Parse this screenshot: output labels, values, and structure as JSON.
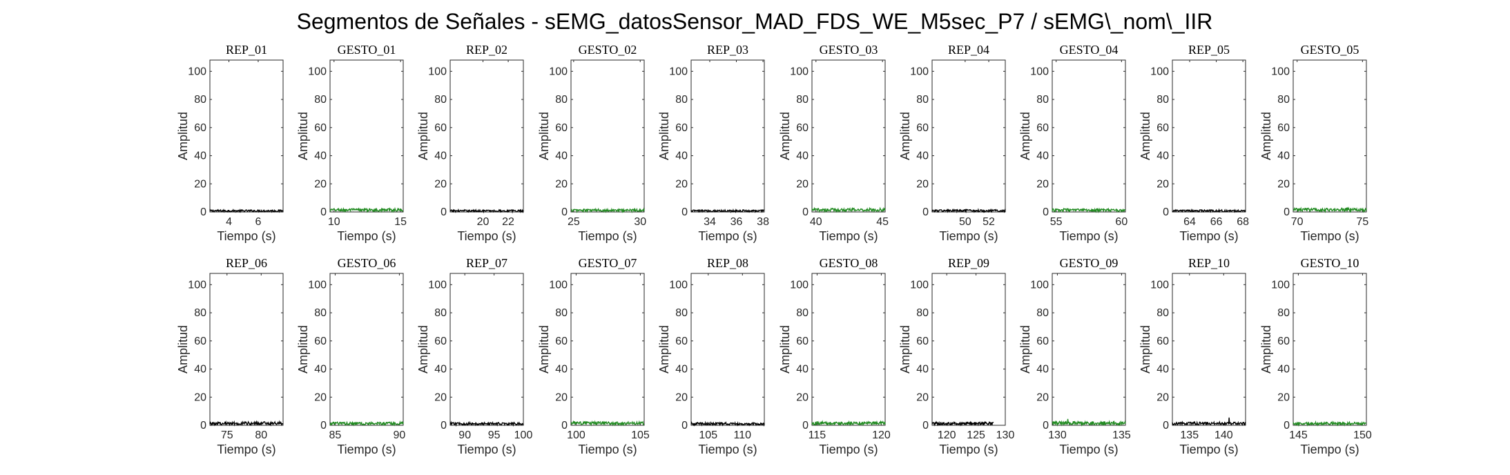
{
  "figure": {
    "suptitle": "Segmentos de Señales - sEMG_datosSensor_MAD_FDS_WE_M5sec_P7 / sEMG\\_nom\\_IIR"
  },
  "colors": {
    "rep": "#000000",
    "gesto": "#228B22",
    "axes": "#262626"
  },
  "chart_data": [
    {
      "type": "line",
      "title": "REP_01",
      "xlabel": "Tiempo (s)",
      "ylabel": "Amplitud",
      "xlim": [
        2.7,
        7.7
      ],
      "ylim": [
        0,
        108
      ],
      "xticks": [
        4,
        6
      ],
      "yticks": [
        0,
        20,
        40,
        60,
        80,
        100
      ],
      "series_color": "rep",
      "baseline": 0.8,
      "noise": 0.7,
      "spikes": []
    },
    {
      "type": "line",
      "title": "GESTO_01",
      "xlabel": "Tiempo (s)",
      "ylabel": "Amplitud",
      "xlim": [
        9.7,
        15.2
      ],
      "ylim": [
        0,
        108
      ],
      "xticks": [
        10,
        15
      ],
      "yticks": [
        0,
        20,
        40,
        60,
        80,
        100
      ],
      "series_color": "gesto",
      "baseline": 1.4,
      "noise": 1.0,
      "spikes": []
    },
    {
      "type": "line",
      "title": "REP_02",
      "xlabel": "Tiempo (s)",
      "ylabel": "Amplitud",
      "xlim": [
        17.4,
        23.2
      ],
      "ylim": [
        0,
        108
      ],
      "xticks": [
        20,
        22
      ],
      "yticks": [
        0,
        20,
        40,
        60,
        80,
        100
      ],
      "series_color": "rep",
      "baseline": 0.8,
      "noise": 0.7,
      "spikes": []
    },
    {
      "type": "line",
      "title": "GESTO_02",
      "xlabel": "Tiempo (s)",
      "ylabel": "Amplitud",
      "xlim": [
        24.8,
        30.3
      ],
      "ylim": [
        0,
        108
      ],
      "xticks": [
        25,
        30
      ],
      "yticks": [
        0,
        20,
        40,
        60,
        80,
        100
      ],
      "series_color": "gesto",
      "baseline": 1.2,
      "noise": 0.9,
      "spikes": []
    },
    {
      "type": "line",
      "title": "REP_03",
      "xlabel": "Tiempo (s)",
      "ylabel": "Amplitud",
      "xlim": [
        32.6,
        38.1
      ],
      "ylim": [
        0,
        108
      ],
      "xticks": [
        34,
        36,
        38
      ],
      "yticks": [
        0,
        20,
        40,
        60,
        80,
        100
      ],
      "series_color": "rep",
      "baseline": 0.8,
      "noise": 0.7,
      "spikes": []
    },
    {
      "type": "line",
      "title": "GESTO_03",
      "xlabel": "Tiempo (s)",
      "ylabel": "Amplitud",
      "xlim": [
        39.7,
        45.2
      ],
      "ylim": [
        0,
        108
      ],
      "xticks": [
        40,
        45
      ],
      "yticks": [
        0,
        20,
        40,
        60,
        80,
        100
      ],
      "series_color": "gesto",
      "baseline": 1.5,
      "noise": 1.1,
      "spikes": []
    },
    {
      "type": "line",
      "title": "REP_04",
      "xlabel": "Tiempo (s)",
      "ylabel": "Amplitud",
      "xlim": [
        47.2,
        53.4
      ],
      "ylim": [
        0,
        108
      ],
      "xticks": [
        50,
        52
      ],
      "yticks": [
        0,
        20,
        40,
        60,
        80,
        100
      ],
      "series_color": "rep",
      "baseline": 0.9,
      "noise": 0.8,
      "spikes": []
    },
    {
      "type": "line",
      "title": "GESTO_04",
      "xlabel": "Tiempo (s)",
      "ylabel": "Amplitud",
      "xlim": [
        54.7,
        60.3
      ],
      "ylim": [
        0,
        108
      ],
      "xticks": [
        55,
        60
      ],
      "yticks": [
        0,
        20,
        40,
        60,
        80,
        100
      ],
      "series_color": "gesto",
      "baseline": 1.3,
      "noise": 1.0,
      "spikes": []
    },
    {
      "type": "line",
      "title": "REP_05",
      "xlabel": "Tiempo (s)",
      "ylabel": "Amplitud",
      "xlim": [
        62.7,
        68.2
      ],
      "ylim": [
        0,
        108
      ],
      "xticks": [
        64,
        66,
        68
      ],
      "yticks": [
        0,
        20,
        40,
        60,
        80,
        100
      ],
      "series_color": "rep",
      "baseline": 0.8,
      "noise": 0.7,
      "spikes": []
    },
    {
      "type": "line",
      "title": "GESTO_05",
      "xlabel": "Tiempo (s)",
      "ylabel": "Amplitud",
      "xlim": [
        69.7,
        75.3
      ],
      "ylim": [
        0,
        108
      ],
      "xticks": [
        70,
        75
      ],
      "yticks": [
        0,
        20,
        40,
        60,
        80,
        100
      ],
      "series_color": "gesto",
      "baseline": 1.6,
      "noise": 1.2,
      "spikes": []
    },
    {
      "type": "line",
      "title": "REP_06",
      "xlabel": "Tiempo (s)",
      "ylabel": "Amplitud",
      "xlim": [
        72.5,
        83.2
      ],
      "ylim": [
        0,
        108
      ],
      "xticks": [
        75,
        80
      ],
      "yticks": [
        0,
        20,
        40,
        60,
        80,
        100
      ],
      "series_color": "rep",
      "baseline": 1.4,
      "noise": 1.1,
      "spikes": []
    },
    {
      "type": "line",
      "title": "GESTO_06",
      "xlabel": "Tiempo (s)",
      "ylabel": "Amplitud",
      "xlim": [
        84.6,
        90.3
      ],
      "ylim": [
        0,
        108
      ],
      "xticks": [
        85,
        90
      ],
      "yticks": [
        0,
        20,
        40,
        60,
        80,
        100
      ],
      "series_color": "gesto",
      "baseline": 1.3,
      "noise": 1.0,
      "spikes": []
    },
    {
      "type": "line",
      "title": "REP_07",
      "xlabel": "Tiempo (s)",
      "ylabel": "Amplitud",
      "xlim": [
        87.5,
        100
      ],
      "ylim": [
        0,
        108
      ],
      "xticks": [
        90,
        95,
        100
      ],
      "yticks": [
        0,
        20,
        40,
        60,
        80,
        100
      ],
      "series_color": "rep",
      "baseline": 1.1,
      "noise": 0.9,
      "spikes": []
    },
    {
      "type": "line",
      "title": "GESTO_07",
      "xlabel": "Tiempo (s)",
      "ylabel": "Amplitud",
      "xlim": [
        99.6,
        105.3
      ],
      "ylim": [
        0,
        108
      ],
      "xticks": [
        100,
        105
      ],
      "yticks": [
        0,
        20,
        40,
        60,
        80,
        100
      ],
      "series_color": "gesto",
      "baseline": 1.5,
      "noise": 1.1,
      "spikes": []
    },
    {
      "type": "line",
      "title": "REP_08",
      "xlabel": "Tiempo (s)",
      "ylabel": "Amplitud",
      "xlim": [
        102.5,
        113.2
      ],
      "ylim": [
        0,
        108
      ],
      "xticks": [
        105,
        110
      ],
      "yticks": [
        0,
        20,
        40,
        60,
        80,
        100
      ],
      "series_color": "rep",
      "baseline": 1.1,
      "noise": 0.9,
      "spikes": []
    },
    {
      "type": "line",
      "title": "GESTO_08",
      "xlabel": "Tiempo (s)",
      "ylabel": "Amplitud",
      "xlim": [
        114.6,
        120.3
      ],
      "ylim": [
        0,
        108
      ],
      "xticks": [
        115,
        120
      ],
      "yticks": [
        0,
        20,
        40,
        60,
        80,
        100
      ],
      "series_color": "gesto",
      "baseline": 1.5,
      "noise": 1.1,
      "spikes": []
    },
    {
      "type": "line",
      "title": "REP_09",
      "xlabel": "Tiempo (s)",
      "ylabel": "Amplitud",
      "xlim": [
        117.5,
        130
      ],
      "ylim": [
        0,
        108
      ],
      "xticks": [
        120,
        125,
        130
      ],
      "yticks": [
        0,
        20,
        40,
        60,
        80,
        100
      ],
      "series_color": "rep",
      "baseline": 1.3,
      "noise": 1.0,
      "spikes": [],
      "xmax_data": 128
    },
    {
      "type": "line",
      "title": "GESTO_09",
      "xlabel": "Tiempo (s)",
      "ylabel": "Amplitud",
      "xlim": [
        129.6,
        135.3
      ],
      "ylim": [
        0,
        108
      ],
      "xticks": [
        130,
        135
      ],
      "yticks": [
        0,
        20,
        40,
        60,
        80,
        100
      ],
      "series_color": "gesto",
      "baseline": 1.6,
      "noise": 1.3,
      "spikes": [
        [
          130.8,
          4.5
        ]
      ]
    },
    {
      "type": "line",
      "title": "REP_10",
      "xlabel": "Tiempo (s)",
      "ylabel": "Amplitud",
      "xlim": [
        132.5,
        143.2
      ],
      "ylim": [
        0,
        108
      ],
      "xticks": [
        135,
        140
      ],
      "yticks": [
        0,
        20,
        40,
        60,
        80,
        100
      ],
      "series_color": "rep",
      "baseline": 1.3,
      "noise": 1.0,
      "spikes": [
        [
          140.8,
          5.5
        ]
      ]
    },
    {
      "type": "line",
      "title": "GESTO_10",
      "xlabel": "Tiempo (s)",
      "ylabel": "Amplitud",
      "xlim": [
        144.6,
        150.3
      ],
      "ylim": [
        0,
        108
      ],
      "xticks": [
        145,
        150
      ],
      "yticks": [
        0,
        20,
        40,
        60,
        80,
        100
      ],
      "series_color": "gesto",
      "baseline": 1.3,
      "noise": 1.0,
      "spikes": []
    }
  ]
}
